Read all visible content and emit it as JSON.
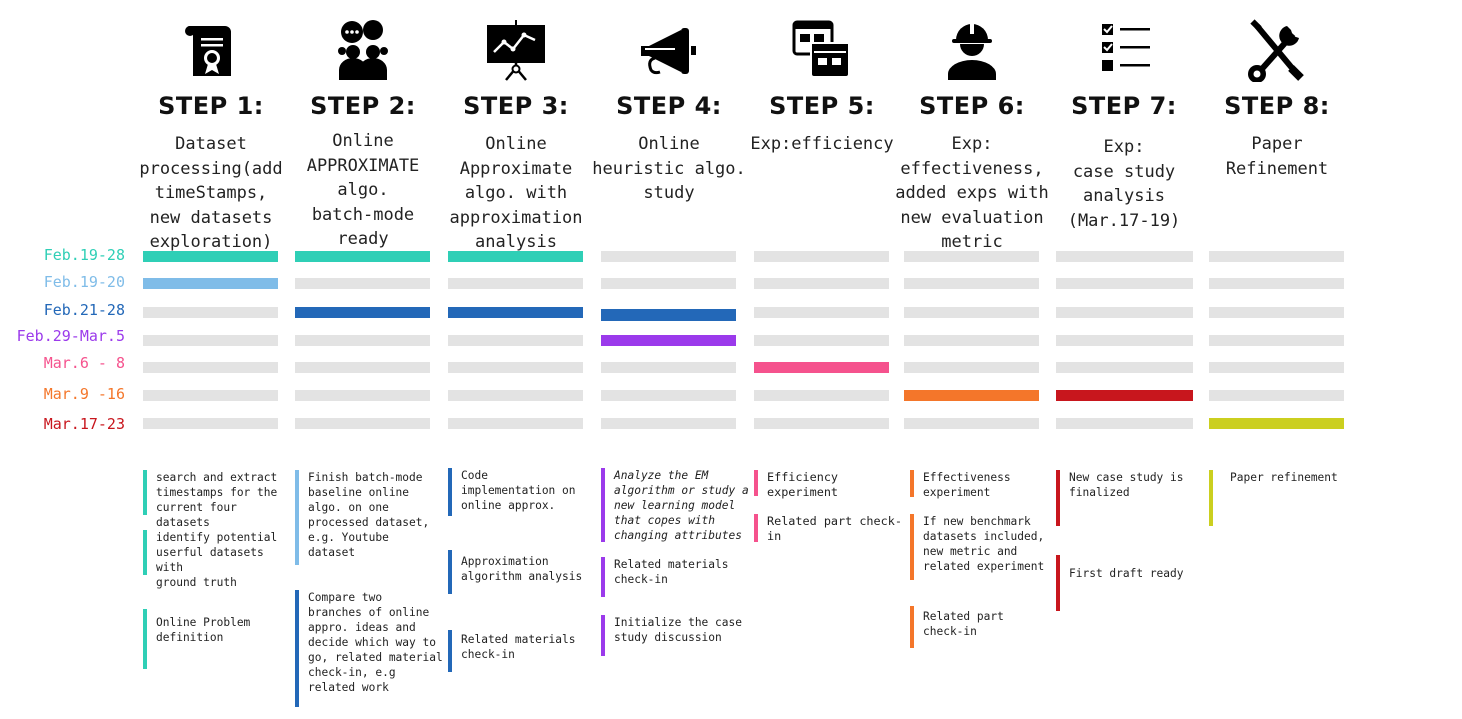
{
  "dates": [
    {
      "label": "Feb.19-28",
      "color": "#2fcfb6"
    },
    {
      "label": "Feb.19-20",
      "color": "#7fbce8"
    },
    {
      "label": "Feb.21-28",
      "color": "#2368b8"
    },
    {
      "label": "Feb.29-Mar.5",
      "color": "#9b3aeb"
    },
    {
      "label": "Mar.6 - 8",
      "color": "#f5528d"
    },
    {
      "label": "Mar.9 -16",
      "color": "#f4762a"
    },
    {
      "label": "Mar.17-23",
      "color": "#c8161d"
    }
  ],
  "steps": [
    {
      "title": "STEP 1:",
      "icon": "certificate-scroll-icon",
      "description": "Dataset\nprocessing(add\ntimeStamps,\nnew datasets\nexploration)",
      "active": [
        0,
        1
      ],
      "tasks": [
        {
          "text": "search and extract\ntimestamps for the\ncurrent four datasets",
          "date": 0
        },
        {
          "text": "identify potential\nuserful datasets with\nground truth",
          "date": 0
        },
        {
          "text": "Online Problem\ndefinition",
          "date": 0
        }
      ]
    },
    {
      "title": "STEP 2:",
      "icon": "discussion-group-icon",
      "description": "Online\nAPPROXIMATE\nalgo.\nbatch-mode\nready",
      "active": [
        0,
        2
      ],
      "tasks": [
        {
          "text": "Finish batch-mode\nbaseline online\nalgo. on one\nprocessed dataset,\ne.g. Youtube\ndataset",
          "date": 1
        },
        {
          "text": "Compare two\nbranches of online\nappro. ideas and\ndecide which way to\ngo, related material\ncheck-in, e.g\nrelated work",
          "date": 2
        }
      ]
    },
    {
      "title": "STEP 3:",
      "icon": "presentation-chart-icon",
      "description": "Online\nApproximate\nalgo. with\napproximation\nanalysis",
      "active": [
        0,
        2
      ],
      "tasks": [
        {
          "text": "Code\nimplementation on\nonline approx.",
          "date": 2
        },
        {
          "text": "Approximation\nalgorithm analysis",
          "date": 2
        },
        {
          "text": "Related materials\ncheck-in",
          "date": 2
        }
      ]
    },
    {
      "title": "STEP 4:",
      "icon": "megaphone-icon",
      "description": "Online\nheuristic algo.\nstudy",
      "active": [
        2,
        3
      ],
      "tasks": [
        {
          "text": "Analyze the EM\nalgorithm or study a\nnew learning model\nthat copes with\nchanging attributes",
          "date": 3,
          "italic": true
        },
        {
          "text": "Related materials\ncheck-in",
          "date": 3
        },
        {
          "text": "Initialize the case\nstudy discussion",
          "date": 3
        }
      ]
    },
    {
      "title": "STEP 5:",
      "icon": "app-windows-icon",
      "description": "Exp:efficiency",
      "active": [
        4
      ],
      "tasks": [
        {
          "text": "Efficiency\nexperiment",
          "date": 4
        },
        {
          "text": "Related part check-\nin",
          "date": 4
        }
      ]
    },
    {
      "title": "STEP 6:",
      "icon": "worker-hardhat-icon",
      "description": "Exp:\neffectiveness,\nadded exps with\nnew evaluation\nmetric",
      "active": [
        5
      ],
      "tasks": [
        {
          "text": "Effectiveness\nexperiment",
          "date": 5
        },
        {
          "text": "If new benchmark\ndatasets included,\nnew metric and\nrelated experiment",
          "date": 5
        },
        {
          "text": "Related part\ncheck-in",
          "date": 5
        }
      ]
    },
    {
      "title": "STEP 7:",
      "icon": "checklist-icon",
      "description": "Exp:\ncase study\nanalysis\n(Mar.17-19)",
      "active": [
        5
      ],
      "tasks": [
        {
          "text": "New case study is\nfinalized",
          "date": 6
        },
        {
          "text": "First draft ready",
          "date": 6
        }
      ]
    },
    {
      "title": "STEP 8:",
      "icon": "tools-wrench-screwdriver-icon",
      "description": "Paper\nRefinement",
      "active": [
        6
      ],
      "tasks": [
        {
          "text": "Paper refinement",
          "date": "lime"
        }
      ]
    }
  ],
  "colors": {
    "inactive": "#e3e3e3",
    "lime": "#cbcf1f"
  }
}
